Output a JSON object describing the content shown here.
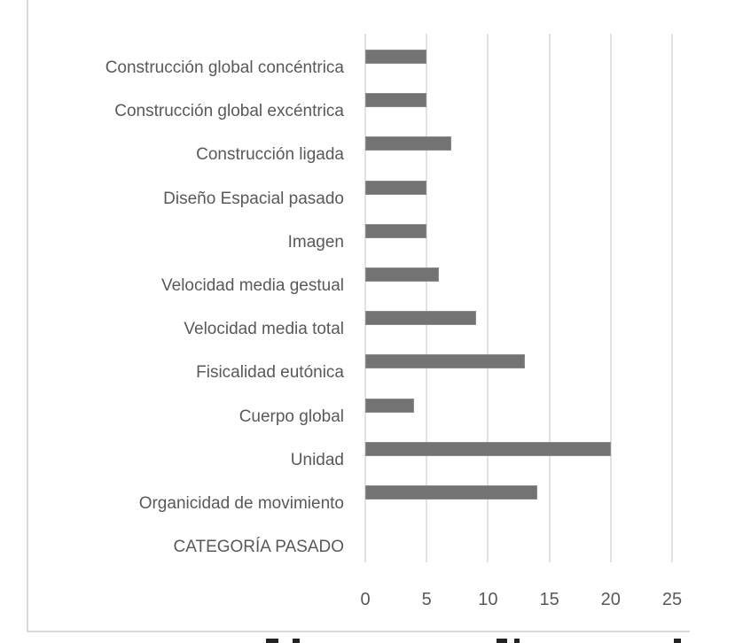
{
  "chart_data": {
    "type": "bar",
    "orientation": "horizontal",
    "title": "",
    "xlabel": "",
    "ylabel": "",
    "categories": [
      "Construcción global concéntrica",
      "Construcción global excéntrica",
      "Construcción ligada",
      "Diseño Espacial pasado",
      "Imagen",
      "Velocidad media gestual",
      "Velocidad media total",
      "Fisicalidad eutónica",
      "Cuerpo global",
      "Unidad",
      "Organicidad de movimiento",
      "CATEGORÍA PASADO"
    ],
    "values": [
      5,
      5,
      7,
      5,
      5,
      6,
      9,
      13,
      4,
      20,
      14,
      0
    ],
    "xlim": [
      0,
      25
    ],
    "x_ticks": [
      "0",
      "5",
      "10",
      "15",
      "20",
      "25"
    ],
    "grid": "vertical",
    "legend": "none",
    "bar_color": "#737373"
  }
}
